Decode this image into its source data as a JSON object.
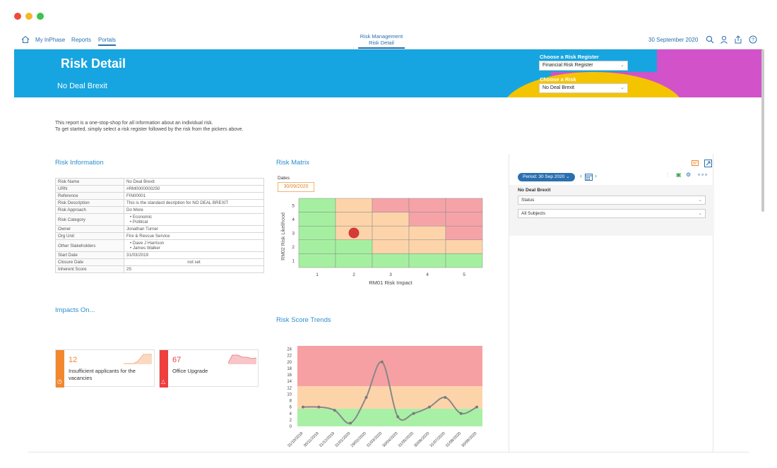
{
  "nav": {
    "links": [
      "My InPhase",
      "Reports",
      "Portals"
    ],
    "center_tab_line1": "Risk Management",
    "center_tab_line2": "Risk Detail",
    "date": "30 September 2020"
  },
  "banner": {
    "title": "Risk Detail",
    "subtitle": "No Deal Brexit",
    "register_label": "Choose a Risk Register",
    "register_value": "Financial Risk Register",
    "risk_label": "Choose a Risk",
    "risk_value": "No Deal Brexit"
  },
  "intro": {
    "line1": "This report is a one-stop-shop for all information about an individual risk.",
    "line2": "To get started, simply select a risk register followed by the risk from the pickers above."
  },
  "sections": {
    "risk_information": "Risk Information",
    "risk_matrix": "Risk Matrix",
    "impacts_on": "Impacts On...",
    "risk_score_trends": "Risk Score Trends"
  },
  "risk_info": {
    "risk_name_k": "Risk Name",
    "risk_name_v": "No Deal Brexit",
    "urn_k": "URN",
    "urn_v": "#RM0000000250",
    "reference_k": "Reference",
    "reference_v": "FIN00001",
    "description_k": "Risk Description",
    "description_v": "This is the standard decription for NO DEAL BREXIT",
    "approach_k": "Risk Approach",
    "approach_v": "Do More",
    "category_k": "Risk Category",
    "category_1": "Economic",
    "category_2": "Political",
    "owner_k": "Owner",
    "owner_v": "Jonathan Turner",
    "org_unit_k": "Org Unit",
    "org_unit_v": "Fire & Rescue Service",
    "stakeholders_k": "Other Stakeholders",
    "stakeholder_1": "Dave J Harrison",
    "stakeholder_2": "James Walker",
    "start_date_k": "Start Date",
    "start_date_v": "31/03/2019",
    "closure_date_k": "Closure Date",
    "closure_date_v": "not set",
    "inherent_k": "Inherent Score",
    "inherent_v": "25"
  },
  "impacts": [
    {
      "count": "12",
      "label_line1": "Insufficient applicants for the",
      "label_line2": "vacancies",
      "color": "#f2872e"
    },
    {
      "count": "67",
      "label_line1": "Office Upgrade",
      "label_line2": "",
      "color": "#ee3e3e"
    }
  ],
  "matrix": {
    "dates_label": "Dates",
    "date_value": "30/09/2020",
    "ylabel": "RM02 Risk Likelihood",
    "xlabel": "RM01 Risk Impact",
    "x_ticks": [
      "1",
      "2",
      "3",
      "4",
      "5"
    ],
    "y_ticks": [
      "5",
      "4",
      "3",
      "2",
      "1"
    ],
    "marker": {
      "impact": 2,
      "likelihood": 3
    },
    "colors": {
      "green": "#a5f0a0",
      "amber": "#fdd4aa",
      "red": "#f6a3a8"
    }
  },
  "chart_data": {
    "type": "line",
    "x": [
      "31/10/2019",
      "30/11/2019",
      "31/12/2019",
      "31/01/2020",
      "29/02/2020",
      "31/03/2020",
      "30/04/2020",
      "31/05/2020",
      "30/06/2020",
      "31/07/2020",
      "31/08/2020",
      "30/09/2020"
    ],
    "values": [
      6,
      6,
      5,
      1,
      9,
      20,
      3,
      4,
      6,
      9,
      4,
      6
    ],
    "y_ticks": [
      "24",
      "22",
      "20",
      "18",
      "16",
      "14",
      "12",
      "10",
      "8",
      "6",
      "4",
      "2",
      "0"
    ],
    "ylim": [
      0,
      25
    ],
    "bands": [
      {
        "from": 0,
        "to": 5.5,
        "color": "#a8f0a6"
      },
      {
        "from": 5.5,
        "to": 12.5,
        "color": "#fdd4aa"
      },
      {
        "from": 12.5,
        "to": 25,
        "color": "#f6a0a3"
      }
    ],
    "line_color": "#888888"
  },
  "right_panel": {
    "period": "Period: 30 Sep 2020",
    "subject": "No Deal Brexit",
    "status_select": "Status",
    "subjects_select": "All Subjects"
  }
}
